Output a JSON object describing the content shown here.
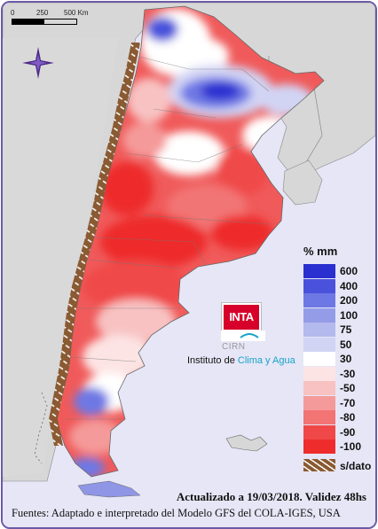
{
  "scale_bar": {
    "ticks": [
      "0",
      "250",
      "500 Km"
    ]
  },
  "compass": {
    "icon": "compass-rose-icon"
  },
  "legend": {
    "title": "% mm",
    "classes": [
      {
        "label": "600",
        "color": "#2a2fd0"
      },
      {
        "label": "400",
        "color": "#4a52dc"
      },
      {
        "label": "200",
        "color": "#6e78e4"
      },
      {
        "label": "100",
        "color": "#949ce8"
      },
      {
        "label": "75",
        "color": "#b4b9ee"
      },
      {
        "label": "50",
        "color": "#d2d4f4"
      },
      {
        "label": "30",
        "color": "#ffffff"
      },
      {
        "label": "-30",
        "color": "#fde4e4"
      },
      {
        "label": "-50",
        "color": "#f8c2c2"
      },
      {
        "label": "-70",
        "color": "#f59a9a"
      },
      {
        "label": "-80",
        "color": "#f27474"
      },
      {
        "label": "-90",
        "color": "#f04848"
      },
      {
        "label": "-100",
        "color": "#ee2c2c"
      }
    ],
    "nodata": {
      "label": "s/dato",
      "color": "#8a5a32"
    }
  },
  "logo": {
    "inta": "INTA",
    "cirn": "CIRN",
    "instituto_prefix": "Instituto de ",
    "instituto_highlight": "Clima y Agua"
  },
  "footer": {
    "updated": "Actualizado a 19/03/2018. Validez 48hs",
    "sources": "Fuentes: Adaptado e interpretado del Modelo GFS del COLA-IGES, USA"
  }
}
